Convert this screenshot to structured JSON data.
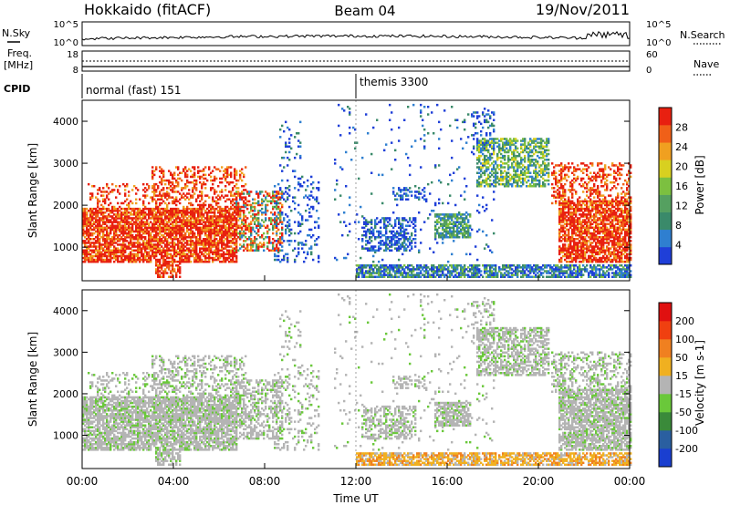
{
  "header": {
    "title": "Hokkaido (fitACF)",
    "beam": "Beam 04",
    "date": "19/Nov/2011"
  },
  "panels": {
    "nsky": {
      "left_label": "N.Sky",
      "right_label": "N.Search",
      "left_ticks": [
        "10^5",
        "10^0"
      ],
      "right_ticks": [
        "10^5",
        "10^0"
      ]
    },
    "freq": {
      "left_label_1": "Freq.",
      "left_label_2": "[MHz]",
      "right_label": "Nave",
      "left_ticks": [
        "18",
        "8"
      ],
      "right_ticks": [
        "60",
        "0"
      ]
    },
    "cpid": {
      "label": "CPID",
      "mode_1": "normal (fast) 151",
      "mode_2": "themis 3300"
    }
  },
  "colors": {
    "power_scale": [
      "#1f3fd8",
      "#2f7fd0",
      "#3a8a6a",
      "#55a060",
      "#7cc040",
      "#d8d020",
      "#f0a020",
      "#f06018",
      "#e82010"
    ],
    "velocity_scale": [
      "#1a3fd0",
      "#2a5fa0",
      "#3a8a3a",
      "#6ac83a",
      "#b4b4b4",
      "#f0b020",
      "#f08020",
      "#f04010",
      "#e01010"
    ]
  },
  "chart_data": [
    {
      "type": "heatmap",
      "name": "power",
      "ylabel": "Slant Range [km]",
      "y_ticks": [
        "1000",
        "2000",
        "3000",
        "4000"
      ],
      "ylim": [
        200,
        4500
      ],
      "xlim": [
        "00:00",
        "24:00"
      ],
      "colorbar_label": "Power [dB]",
      "colorbar_ticks": [
        "4",
        "8",
        "12",
        "16",
        "20",
        "24",
        "28"
      ],
      "colorbar_range": [
        0,
        32
      ],
      "grid": false,
      "legend_position": "right"
    },
    {
      "type": "heatmap",
      "name": "velocity",
      "ylabel": "Slant Range [km]",
      "y_ticks": [
        "1000",
        "2000",
        "3000",
        "4000"
      ],
      "ylim": [
        200,
        4500
      ],
      "xlim": [
        "00:00",
        "24:00"
      ],
      "colorbar_label": "Velocity [m s-1]",
      "colorbar_ticks": [
        "200",
        "100",
        "50",
        "15",
        "-15",
        "-50",
        "-100",
        "-200"
      ],
      "colorbar_range": [
        -250,
        250
      ],
      "grid": false,
      "legend_position": "right"
    }
  ],
  "x_axis": {
    "label": "Time UT",
    "ticks": [
      "00:00",
      "04:00",
      "08:00",
      "12:00",
      "16:00",
      "20:00",
      "00:00"
    ]
  }
}
